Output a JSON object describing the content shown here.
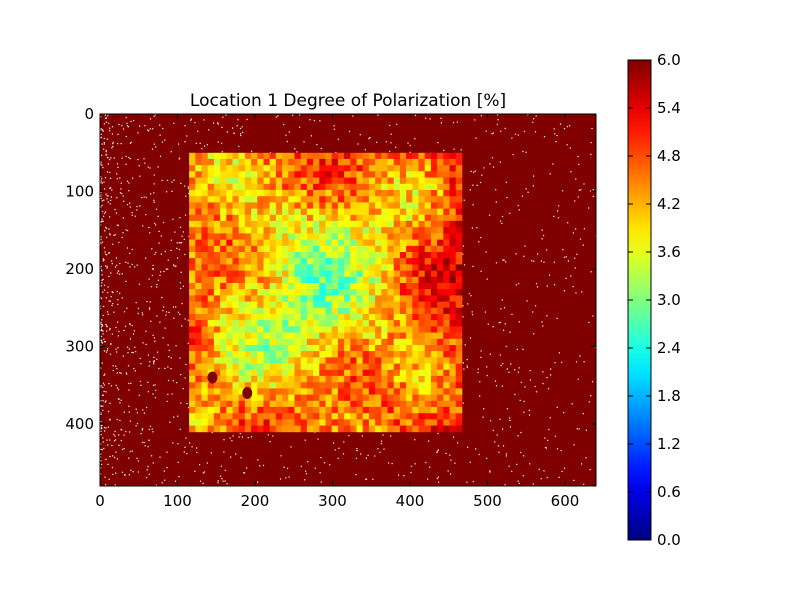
{
  "chart_data": {
    "type": "heatmap",
    "title": "Location 1 Degree of Polarization [%]",
    "xlabel": "",
    "ylabel": "",
    "image_width": 640,
    "image_height": 480,
    "xlim": [
      0,
      640
    ],
    "ylim": [
      480,
      0
    ],
    "y_axis_inverted": true,
    "x_ticks": [
      "0",
      "100",
      "200",
      "300",
      "400",
      "500",
      "600"
    ],
    "y_ticks": [
      "0",
      "100",
      "200",
      "300",
      "400"
    ],
    "colormap": "jet",
    "color_range": [
      0.0,
      6.0
    ],
    "colorbar_ticks": [
      "0.0",
      "0.6",
      "1.2",
      "1.8",
      "2.4",
      "3.0",
      "3.6",
      "4.2",
      "4.8",
      "5.4",
      "6.0"
    ],
    "background_value": 6.0,
    "saturated_color": "#800000",
    "sample_region": {
      "x_range": [
        115,
        465
      ],
      "y_range": [
        50,
        405
      ],
      "typical_value_range": [
        2.4,
        4.8
      ],
      "center_value": 2.6
    },
    "features": [
      {
        "description": "dark spots",
        "x": 190,
        "y": 360,
        "value": 6.0
      },
      {
        "description": "dark spot",
        "x": 145,
        "y": 340,
        "value": 6.0
      }
    ]
  }
}
